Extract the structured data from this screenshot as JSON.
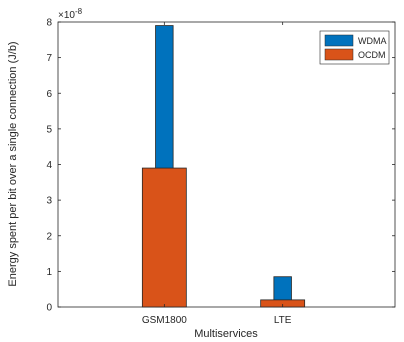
{
  "chart_data": {
    "type": "bar",
    "categories": [
      "GSM1800",
      "LTE"
    ],
    "series": [
      {
        "name": "WDMA",
        "values": [
          7.9,
          0.85
        ],
        "color": "#0072BD"
      },
      {
        "name": "OCDM",
        "values": [
          3.9,
          0.2
        ],
        "color": "#D95319"
      }
    ],
    "xlabel": "Multiservices",
    "ylabel": "Energy spent per bit over a single connection (J/b)",
    "ylim": [
      0,
      8
    ],
    "yticks": [
      "0",
      "1",
      "2",
      "3",
      "4",
      "5",
      "6",
      "7",
      "8"
    ],
    "y_multiplier_base": "×10",
    "y_multiplier_exp": "-8",
    "grid": false,
    "legend_position": "top-right"
  }
}
